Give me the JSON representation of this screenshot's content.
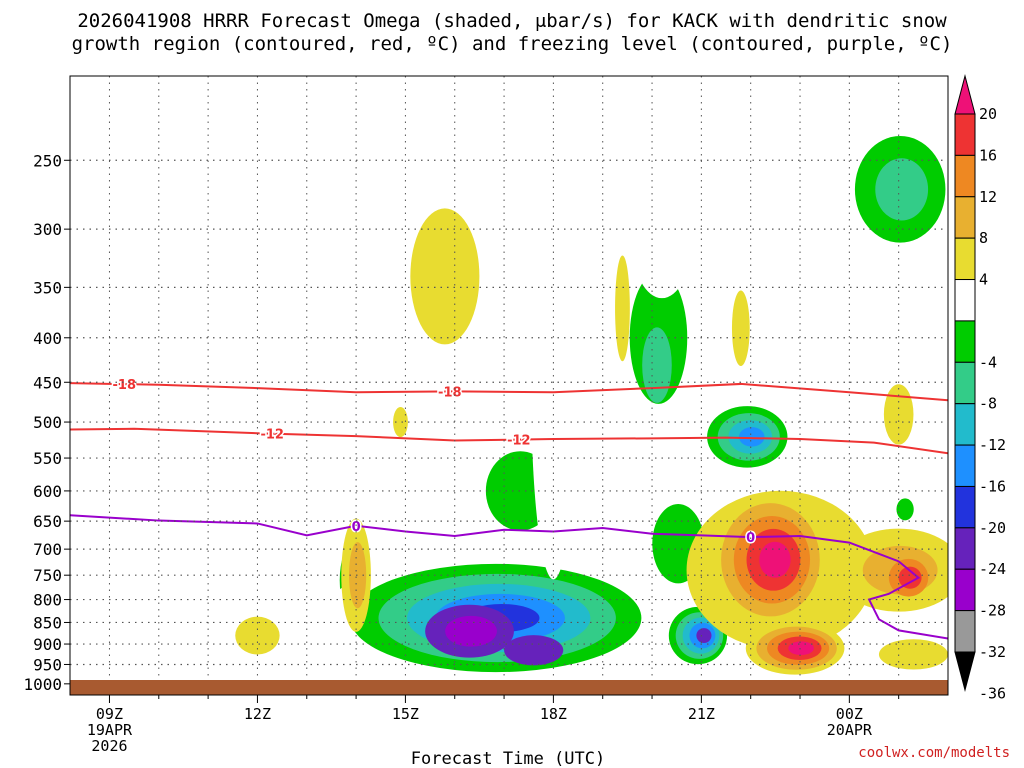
{
  "header": {
    "title_line1": "2026041908 HRRR Forecast Omega (shaded, μbar/s) for KACK with dendritic snow",
    "title_line2": "growth region (contoured, red, ºC) and freezing level (contoured, purple, ºC)"
  },
  "credit": "coolwx.com/modelts",
  "chart_data": {
    "type": "heatmap",
    "title": "2026041908 HRRR Forecast Omega (shaded, μbar/s) for KACK with dendritic snow growth region (contoured, red, ºC) and freezing level (contoured, purple, ºC)",
    "xlabel": "Forecast Time (UTC)",
    "ylabel": "",
    "x_ticks": [
      {
        "hour": 9,
        "line1": "09Z",
        "line2": "19APR",
        "line3": "2026"
      },
      {
        "hour": 12,
        "line1": "12Z",
        "line2": "",
        "line3": ""
      },
      {
        "hour": 15,
        "line1": "15Z",
        "line2": "",
        "line3": ""
      },
      {
        "hour": 18,
        "line1": "18Z",
        "line2": "",
        "line3": ""
      },
      {
        "hour": 21,
        "line1": "21Z",
        "line2": "",
        "line3": ""
      },
      {
        "hour": 24,
        "line1": "00Z",
        "line2": "20APR",
        "line3": ""
      }
    ],
    "xlim_hours": [
      8.2,
      26.0
    ],
    "y_ticks": [
      250,
      300,
      350,
      400,
      450,
      500,
      550,
      600,
      650,
      700,
      750,
      800,
      850,
      900,
      950,
      1000
    ],
    "ylim_hpa": [
      200,
      1030
    ],
    "y_scale": "log-pressure",
    "grid": true,
    "colorbar": {
      "ticks": [
        "20",
        "16",
        "12",
        "8",
        "4",
        "-4",
        "-8",
        "-12",
        "-16",
        "-20",
        "-24",
        "-28",
        "-32",
        "-36"
      ],
      "bands": [
        {
          "range": [
            20,
            null
          ],
          "color": "#ee1177"
        },
        {
          "range": [
            16,
            20
          ],
          "color": "#ee3333"
        },
        {
          "range": [
            12,
            16
          ],
          "color": "#ee8822"
        },
        {
          "range": [
            8,
            12
          ],
          "color": "#e8b030"
        },
        {
          "range": [
            4,
            8
          ],
          "color": "#e8dc30"
        },
        {
          "range": [
            -4,
            4
          ],
          "color": "#ffffff"
        },
        {
          "range": [
            -8,
            -4
          ],
          "color": "#00cc00"
        },
        {
          "range": [
            -12,
            -8
          ],
          "color": "#33cc88"
        },
        {
          "range": [
            -16,
            -12
          ],
          "color": "#22bbcc"
        },
        {
          "range": [
            -20,
            -16
          ],
          "color": "#1e90ff"
        },
        {
          "range": [
            -24,
            -20
          ],
          "color": "#2233dd"
        },
        {
          "range": [
            -28,
            -24
          ],
          "color": "#6622bb"
        },
        {
          "range": [
            -32,
            -28
          ],
          "color": "#9900cc"
        },
        {
          "range": [
            -36,
            -32
          ],
          "color": "#999999"
        },
        {
          "range": [
            null,
            -36
          ],
          "color": "#000000"
        }
      ]
    },
    "contours": [
      {
        "label": "-18",
        "color": "#ee3333",
        "points": [
          [
            8.2,
            451
          ],
          [
            10,
            453
          ],
          [
            12,
            457
          ],
          [
            14,
            462
          ],
          [
            16,
            461
          ],
          [
            18,
            462
          ],
          [
            20,
            457
          ],
          [
            21.8,
            452
          ],
          [
            24,
            462
          ],
          [
            26,
            472
          ]
        ],
        "label_hours": [
          9.3,
          15.9
        ]
      },
      {
        "label": "-12",
        "color": "#ee3333",
        "points": [
          [
            8.2,
            510
          ],
          [
            9.5,
            509
          ],
          [
            12,
            515
          ],
          [
            14,
            519
          ],
          [
            16,
            525
          ],
          [
            18,
            523
          ],
          [
            20,
            522
          ],
          [
            21.5,
            521
          ],
          [
            23,
            523
          ],
          [
            24.5,
            528
          ],
          [
            26,
            543
          ]
        ],
        "label_hours": [
          12.3,
          17.3
        ]
      },
      {
        "label": "0",
        "color": "#9900cc",
        "points": [
          [
            8.2,
            640
          ],
          [
            10,
            649
          ],
          [
            12,
            654
          ],
          [
            13,
            675
          ],
          [
            14,
            658
          ],
          [
            15,
            668
          ],
          [
            16,
            676
          ],
          [
            17,
            665
          ],
          [
            18,
            668
          ],
          [
            19,
            662
          ],
          [
            20,
            672
          ],
          [
            21,
            675
          ],
          [
            22,
            678
          ],
          [
            23,
            676
          ],
          [
            24,
            688
          ],
          [
            25,
            723
          ],
          [
            25.4,
            755
          ],
          [
            24.8,
            788
          ],
          [
            24.4,
            800
          ],
          [
            24.6,
            843
          ],
          [
            25,
            868
          ],
          [
            26,
            887
          ]
        ],
        "label_hours": [
          14.0,
          22.0
        ]
      }
    ],
    "omega_cells": [
      {
        "levels": [
          -4,
          -8,
          -12,
          -16,
          -20
        ],
        "color_by_level": true,
        "x": 16.9,
        "p": 830,
        "note": "main ascent core"
      },
      {
        "levels": [
          4,
          8,
          12,
          16,
          20
        ],
        "x": 22.4,
        "p": 720,
        "note": "subsidence core"
      }
    ],
    "ground_from_hpa": 1013
  }
}
